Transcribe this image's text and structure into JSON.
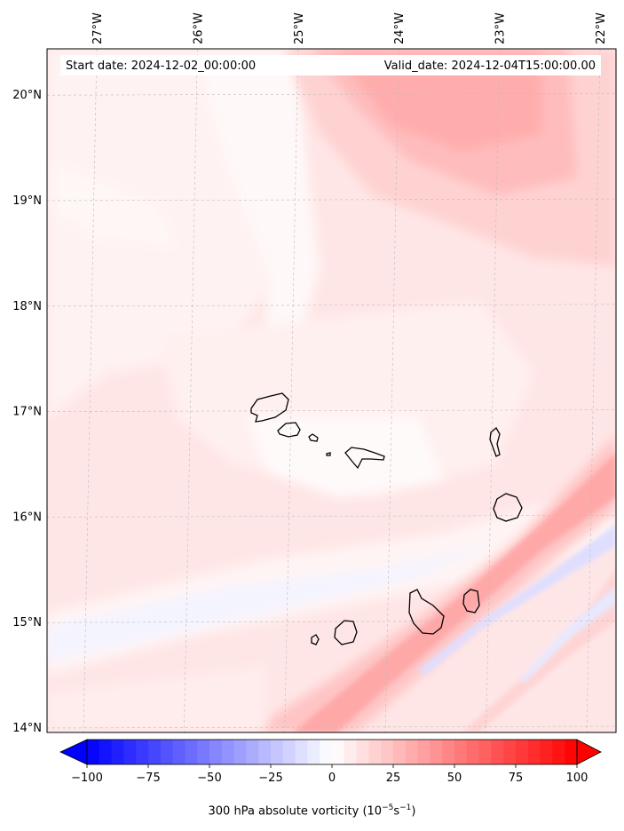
{
  "annotations": {
    "start_date": "Start date: 2024-12-02_00:00:00",
    "valid_date": "Valid_date: 2024-12-04T15:00:00.00"
  },
  "lon_ticks": [
    {
      "value": -27,
      "label": "27°W"
    },
    {
      "value": -26,
      "label": "26°W"
    },
    {
      "value": -25,
      "label": "25°W"
    },
    {
      "value": -24,
      "label": "24°W"
    },
    {
      "value": -23,
      "label": "23°W"
    },
    {
      "value": -22,
      "label": "22°W"
    }
  ],
  "lat_ticks": [
    {
      "value": 14,
      "label": "14°N"
    },
    {
      "value": 15,
      "label": "15°N"
    },
    {
      "value": 16,
      "label": "16°N"
    },
    {
      "value": 17,
      "label": "17°N"
    },
    {
      "value": 18,
      "label": "18°N"
    },
    {
      "value": 19,
      "label": "19°N"
    },
    {
      "value": 20,
      "label": "20°N"
    }
  ],
  "colorbar": {
    "label_prefix": "300 hPa absolute vorticity (10",
    "label_exp1": "−5",
    "label_mid": "s",
    "label_exp2": "−1",
    "label_suffix": ")",
    "min": -100,
    "max": 100,
    "ticks": [
      {
        "value": -100,
        "label": "−100"
      },
      {
        "value": -75,
        "label": "−75"
      },
      {
        "value": -50,
        "label": "−50"
      },
      {
        "value": -25,
        "label": "−25"
      },
      {
        "value": 0,
        "label": "0"
      },
      {
        "value": 25,
        "label": "25"
      },
      {
        "value": 50,
        "label": "50"
      },
      {
        "value": 75,
        "label": "75"
      },
      {
        "value": 100,
        "label": "100"
      }
    ],
    "colormap": "bwr",
    "extend": "both"
  },
  "colors": {
    "negative": "#0000ff",
    "neutral": "#ffffff",
    "positive": "#ff0000",
    "coastline": "#000000",
    "gridline": "#bbbbbb"
  }
}
